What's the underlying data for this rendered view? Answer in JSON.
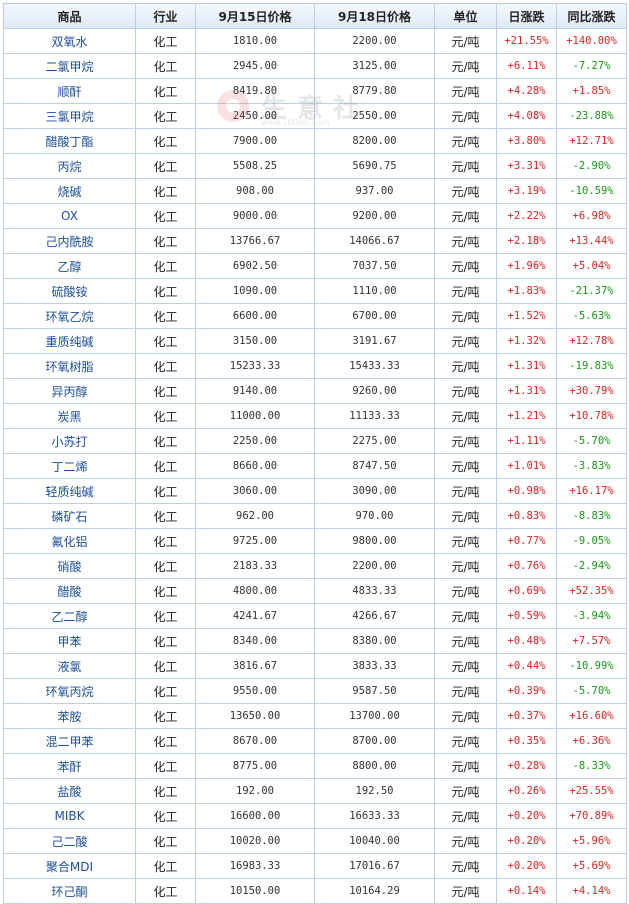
{
  "headers": [
    "商品",
    "行业",
    "9月15日价格",
    "9月18日价格",
    "单位",
    "日涨跌",
    "同比涨跌"
  ],
  "watermark": {
    "text": "生意社",
    "url": "www.100ppi.com"
  },
  "colors": {
    "up": "#e32222",
    "down": "#139b13",
    "name": "#1c4f9c",
    "border": "#bccfe4"
  },
  "rows": [
    {
      "name": "双氧水",
      "industry": "化工",
      "p1": "1810.00",
      "p2": "2200.00",
      "unit": "元/吨",
      "day": "+21.55%",
      "yoy": "+140.00%"
    },
    {
      "name": "二氯甲烷",
      "industry": "化工",
      "p1": "2945.00",
      "p2": "3125.00",
      "unit": "元/吨",
      "day": "+6.11%",
      "yoy": "-7.27%"
    },
    {
      "name": "顺酐",
      "industry": "化工",
      "p1": "8419.80",
      "p2": "8779.80",
      "unit": "元/吨",
      "day": "+4.28%",
      "yoy": "+1.85%"
    },
    {
      "name": "三氯甲烷",
      "industry": "化工",
      "p1": "2450.00",
      "p2": "2550.00",
      "unit": "元/吨",
      "day": "+4.08%",
      "yoy": "-23.88%"
    },
    {
      "name": "醋酸丁酯",
      "industry": "化工",
      "p1": "7900.00",
      "p2": "8200.00",
      "unit": "元/吨",
      "day": "+3.80%",
      "yoy": "+12.71%"
    },
    {
      "name": "丙烷",
      "industry": "化工",
      "p1": "5508.25",
      "p2": "5690.75",
      "unit": "元/吨",
      "day": "+3.31%",
      "yoy": "-2.90%"
    },
    {
      "name": "烧碱",
      "industry": "化工",
      "p1": "908.00",
      "p2": "937.00",
      "unit": "元/吨",
      "day": "+3.19%",
      "yoy": "-10.59%"
    },
    {
      "name": "OX",
      "industry": "化工",
      "p1": "9000.00",
      "p2": "9200.00",
      "unit": "元/吨",
      "day": "+2.22%",
      "yoy": "+6.98%"
    },
    {
      "name": "己内酰胺",
      "industry": "化工",
      "p1": "13766.67",
      "p2": "14066.67",
      "unit": "元/吨",
      "day": "+2.18%",
      "yoy": "+13.44%"
    },
    {
      "name": "乙醇",
      "industry": "化工",
      "p1": "6902.50",
      "p2": "7037.50",
      "unit": "元/吨",
      "day": "+1.96%",
      "yoy": "+5.04%"
    },
    {
      "name": "硫酸铵",
      "industry": "化工",
      "p1": "1090.00",
      "p2": "1110.00",
      "unit": "元/吨",
      "day": "+1.83%",
      "yoy": "-21.37%"
    },
    {
      "name": "环氧乙烷",
      "industry": "化工",
      "p1": "6600.00",
      "p2": "6700.00",
      "unit": "元/吨",
      "day": "+1.52%",
      "yoy": "-5.63%"
    },
    {
      "name": "重质纯碱",
      "industry": "化工",
      "p1": "3150.00",
      "p2": "3191.67",
      "unit": "元/吨",
      "day": "+1.32%",
      "yoy": "+12.78%"
    },
    {
      "name": "环氧树脂",
      "industry": "化工",
      "p1": "15233.33",
      "p2": "15433.33",
      "unit": "元/吨",
      "day": "+1.31%",
      "yoy": "-19.83%"
    },
    {
      "name": "异丙醇",
      "industry": "化工",
      "p1": "9140.00",
      "p2": "9260.00",
      "unit": "元/吨",
      "day": "+1.31%",
      "yoy": "+30.79%"
    },
    {
      "name": "炭黑",
      "industry": "化工",
      "p1": "11000.00",
      "p2": "11133.33",
      "unit": "元/吨",
      "day": "+1.21%",
      "yoy": "+10.78%"
    },
    {
      "name": "小苏打",
      "industry": "化工",
      "p1": "2250.00",
      "p2": "2275.00",
      "unit": "元/吨",
      "day": "+1.11%",
      "yoy": "-5.70%"
    },
    {
      "name": "丁二烯",
      "industry": "化工",
      "p1": "8660.00",
      "p2": "8747.50",
      "unit": "元/吨",
      "day": "+1.01%",
      "yoy": "-3.83%"
    },
    {
      "name": "轻质纯碱",
      "industry": "化工",
      "p1": "3060.00",
      "p2": "3090.00",
      "unit": "元/吨",
      "day": "+0.98%",
      "yoy": "+16.17%"
    },
    {
      "name": "磷矿石",
      "industry": "化工",
      "p1": "962.00",
      "p2": "970.00",
      "unit": "元/吨",
      "day": "+0.83%",
      "yoy": "-8.83%"
    },
    {
      "name": "氟化铝",
      "industry": "化工",
      "p1": "9725.00",
      "p2": "9800.00",
      "unit": "元/吨",
      "day": "+0.77%",
      "yoy": "-9.05%"
    },
    {
      "name": "硝酸",
      "industry": "化工",
      "p1": "2183.33",
      "p2": "2200.00",
      "unit": "元/吨",
      "day": "+0.76%",
      "yoy": "-2.94%"
    },
    {
      "name": "醋酸",
      "industry": "化工",
      "p1": "4800.00",
      "p2": "4833.33",
      "unit": "元/吨",
      "day": "+0.69%",
      "yoy": "+52.35%"
    },
    {
      "name": "乙二醇",
      "industry": "化工",
      "p1": "4241.67",
      "p2": "4266.67",
      "unit": "元/吨",
      "day": "+0.59%",
      "yoy": "-3.94%"
    },
    {
      "name": "甲苯",
      "industry": "化工",
      "p1": "8340.00",
      "p2": "8380.00",
      "unit": "元/吨",
      "day": "+0.48%",
      "yoy": "+7.57%"
    },
    {
      "name": "液氯",
      "industry": "化工",
      "p1": "3816.67",
      "p2": "3833.33",
      "unit": "元/吨",
      "day": "+0.44%",
      "yoy": "-10.99%"
    },
    {
      "name": "环氧丙烷",
      "industry": "化工",
      "p1": "9550.00",
      "p2": "9587.50",
      "unit": "元/吨",
      "day": "+0.39%",
      "yoy": "-5.70%"
    },
    {
      "name": "苯胺",
      "industry": "化工",
      "p1": "13650.00",
      "p2": "13700.00",
      "unit": "元/吨",
      "day": "+0.37%",
      "yoy": "+16.60%"
    },
    {
      "name": "混二甲苯",
      "industry": "化工",
      "p1": "8670.00",
      "p2": "8700.00",
      "unit": "元/吨",
      "day": "+0.35%",
      "yoy": "+6.36%"
    },
    {
      "name": "苯酐",
      "industry": "化工",
      "p1": "8775.00",
      "p2": "8800.00",
      "unit": "元/吨",
      "day": "+0.28%",
      "yoy": "-8.33%"
    },
    {
      "name": "盐酸",
      "industry": "化工",
      "p1": "192.00",
      "p2": "192.50",
      "unit": "元/吨",
      "day": "+0.26%",
      "yoy": "+25.55%"
    },
    {
      "name": "MIBK",
      "industry": "化工",
      "p1": "16600.00",
      "p2": "16633.33",
      "unit": "元/吨",
      "day": "+0.20%",
      "yoy": "+70.89%"
    },
    {
      "name": "己二酸",
      "industry": "化工",
      "p1": "10020.00",
      "p2": "10040.00",
      "unit": "元/吨",
      "day": "+0.20%",
      "yoy": "+5.96%"
    },
    {
      "name": "聚合MDI",
      "industry": "化工",
      "p1": "16983.33",
      "p2": "17016.67",
      "unit": "元/吨",
      "day": "+0.20%",
      "yoy": "+5.69%"
    },
    {
      "name": "环己酮",
      "industry": "化工",
      "p1": "10150.00",
      "p2": "10164.29",
      "unit": "元/吨",
      "day": "+0.14%",
      "yoy": "+4.14%"
    }
  ]
}
